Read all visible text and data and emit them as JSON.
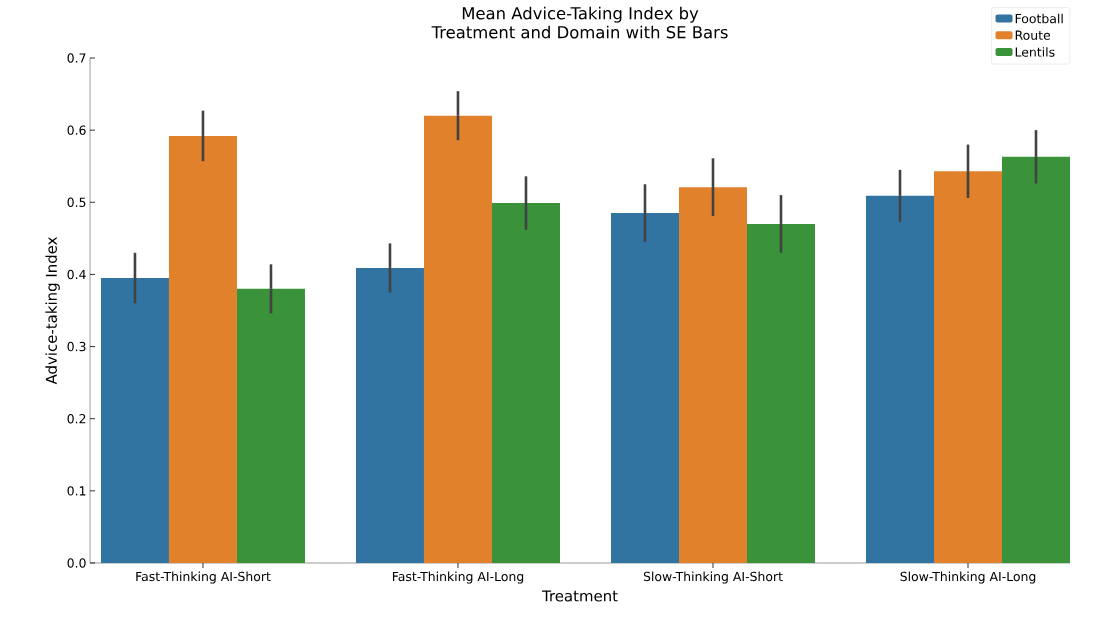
{
  "chart_data": {
    "type": "bar",
    "title": "Mean Advice-Taking Index by\nTreatment and Domain with SE Bars",
    "xlabel": "Treatment",
    "ylabel": "Advice-taking Index",
    "categories": [
      "Fast-Thinking AI-Short",
      "Fast-Thinking AI-Long",
      "Slow-Thinking AI-Short",
      "Slow-Thinking AI-Long"
    ],
    "series": [
      {
        "name": "Football",
        "color": "#3274a1",
        "values": [
          0.395,
          0.409,
          0.485,
          0.509
        ],
        "errors": [
          0.035,
          0.034,
          0.04,
          0.036
        ]
      },
      {
        "name": "Route",
        "color": "#e1812c",
        "values": [
          0.592,
          0.62,
          0.521,
          0.543
        ],
        "errors": [
          0.035,
          0.034,
          0.04,
          0.037
        ]
      },
      {
        "name": "Lentils",
        "color": "#3a923a",
        "values": [
          0.38,
          0.499,
          0.47,
          0.563
        ],
        "errors": [
          0.034,
          0.037,
          0.04,
          0.037
        ]
      }
    ],
    "ylim": [
      0,
      0.7
    ],
    "yticks": [
      {
        "value": 0,
        "label": "0.0"
      },
      0.1,
      0.2,
      0.3,
      0.4,
      0.5,
      0.6,
      0.7
    ],
    "grid": false,
    "legend": "top right"
  }
}
